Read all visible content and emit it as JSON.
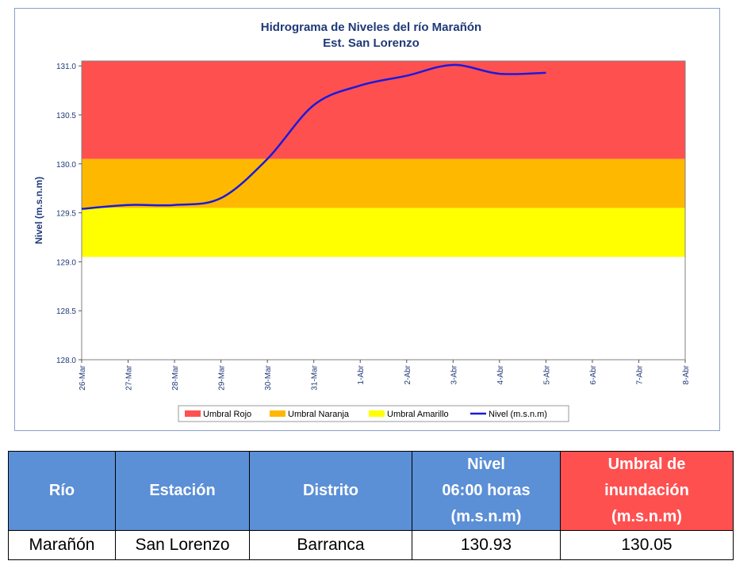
{
  "chart_data": {
    "type": "line",
    "title": "Hidrograma de Niveles del río Marañón",
    "subtitle": "Est. San Lorenzo",
    "ylabel": "Nivel (m.s.n.m)",
    "xlabel": "",
    "ylim": [
      128.0,
      131.05
    ],
    "y_ticks": [
      "128.0",
      "128.5",
      "129.0",
      "129.5",
      "130.0",
      "130.5",
      "131.0"
    ],
    "categories": [
      "26-Mar",
      "27-Mar",
      "28-Mar",
      "29-Mar",
      "30-Mar",
      "31-Mar",
      "1-Abr",
      "2-Abr",
      "3-Abr",
      "4-Abr",
      "5-Abr",
      "6-Abr",
      "7-Abr",
      "8-Abr"
    ],
    "thresholds": [
      {
        "name": "Umbral Rojo",
        "from": 130.05,
        "to": 131.05,
        "color": "#ff5050"
      },
      {
        "name": "Umbral Naranja",
        "from": 129.55,
        "to": 130.05,
        "color": "#ffb800"
      },
      {
        "name": "Umbral Amarillo",
        "from": 129.05,
        "to": 129.55,
        "color": "#ffff00"
      }
    ],
    "series": [
      {
        "name": "Nivel (m.s.n.m)",
        "color": "#1a1adc",
        "x": [
          "26-Mar",
          "27-Mar",
          "28-Mar",
          "29-Mar",
          "30-Mar",
          "31-Mar",
          "1-Abr",
          "2-Abr",
          "3-Abr",
          "4-Abr",
          "5-Abr"
        ],
        "values": [
          129.54,
          129.58,
          129.58,
          129.65,
          130.05,
          130.6,
          130.8,
          130.9,
          131.01,
          130.92,
          130.93
        ]
      }
    ],
    "legend": [
      "Umbral Rojo",
      "Umbral Naranja",
      "Umbral Amarillo",
      "Nivel (m.s.n.m)"
    ],
    "legend_position": "bottom",
    "grid": false
  },
  "table": {
    "headers": [
      "Río",
      "Estación",
      "Distrito",
      "Nivel\n06:00 horas\n(m.s.n.m)",
      "Umbral de\ninundación\n(m.s.n.m)"
    ],
    "row": [
      "Marañón",
      "San Lorenzo",
      "Barranca",
      "130.93",
      "130.05"
    ]
  }
}
